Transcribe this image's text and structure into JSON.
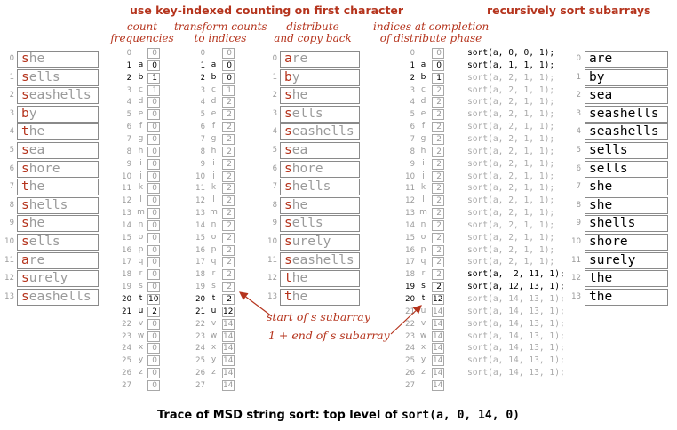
{
  "headings": {
    "left": "use key-indexed counting on first character",
    "right": "recursively sort subarrays"
  },
  "phase_labels": {
    "count": "count\nfrequencies",
    "transform": "transform counts\nto indices",
    "distribute": "distribute\nand copy back",
    "completion": "indices at completion\nof distribute phase"
  },
  "input_strings": [
    "she",
    "sells",
    "seashells",
    "by",
    "the",
    "sea",
    "shore",
    "the",
    "shells",
    "she",
    "sells",
    "are",
    "surely",
    "seashells"
  ],
  "distributed_strings": [
    "are",
    "by",
    "she",
    "sells",
    "seashells",
    "sea",
    "shore",
    "shells",
    "she",
    "sells",
    "surely",
    "seashells",
    "the",
    "the"
  ],
  "sorted_strings": [
    "are",
    "by",
    "sea",
    "seashells",
    "seashells",
    "sells",
    "sells",
    "she",
    "she",
    "shells",
    "shore",
    "surely",
    "the",
    "the"
  ],
  "alphabet": [
    "",
    "a",
    "b",
    "c",
    "d",
    "e",
    "f",
    "g",
    "h",
    "i",
    "j",
    "k",
    "l",
    "m",
    "n",
    "o",
    "p",
    "q",
    "r",
    "s",
    "t",
    "u",
    "v",
    "w",
    "x",
    "y",
    "z",
    ""
  ],
  "count_values": [
    0,
    0,
    1,
    1,
    0,
    0,
    0,
    0,
    0,
    0,
    0,
    0,
    0,
    0,
    0,
    0,
    0,
    0,
    0,
    0,
    10,
    2,
    0,
    0,
    0,
    0,
    0,
    0
  ],
  "transform_values": [
    0,
    0,
    0,
    1,
    2,
    2,
    2,
    2,
    2,
    2,
    2,
    2,
    2,
    2,
    2,
    2,
    2,
    2,
    2,
    2,
    2,
    12,
    14,
    14,
    14,
    14,
    14,
    14
  ],
  "completion_values": [
    0,
    0,
    1,
    2,
    2,
    2,
    2,
    2,
    2,
    2,
    2,
    2,
    2,
    2,
    2,
    2,
    2,
    2,
    2,
    2,
    12,
    14,
    14,
    14,
    14,
    14,
    14,
    14
  ],
  "sort_calls": [
    "sort(a, 0, 0, 1);",
    "sort(a, 1, 1, 1);",
    "sort(a, 2, 1, 1);",
    "sort(a, 2, 1, 1);",
    "sort(a, 2, 1, 1);",
    "sort(a, 2, 1, 1);",
    "sort(a, 2, 1, 1);",
    "sort(a, 2, 1, 1);",
    "sort(a, 2, 1, 1);",
    "sort(a, 2, 1, 1);",
    "sort(a, 2, 1, 1);",
    "sort(a, 2, 1, 1);",
    "sort(a, 2, 1, 1);",
    "sort(a, 2, 1, 1);",
    "sort(a, 2, 1, 1);",
    "sort(a, 2, 1, 1);",
    "sort(a, 2, 1, 1);",
    "sort(a, 2, 1, 1);",
    "sort(a,  2, 11, 1);",
    "sort(a, 12, 13, 1);",
    "sort(a, 14, 13, 1);",
    "sort(a, 14, 13, 1);",
    "sort(a, 14, 13, 1);",
    "sort(a, 14, 13, 1);",
    "sort(a, 14, 13, 1);",
    "sort(a, 14, 13, 1);",
    "sort(a, 14, 13, 1);"
  ],
  "annotations": {
    "start": "start of s subarray",
    "end": "1 + end of s subarray"
  },
  "caption": {
    "prefix": "Trace of MSD string sort: top level of ",
    "code": "sort(a, 0, 14, 0)"
  }
}
